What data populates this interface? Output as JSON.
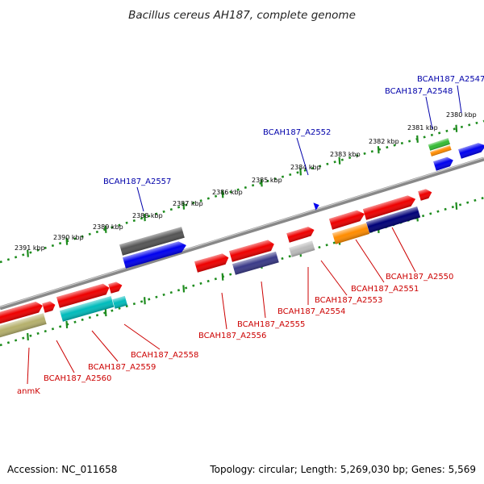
{
  "title": "Bacillus cereus AH187, complete genome",
  "footer": {
    "accession": "Accession: NC_011658",
    "summary": "Topology: circular; Length: 5,269,030 bp; Genes: 5,569"
  },
  "colors": {
    "backbone": "#888888",
    "tick_dots": "#1e8c1e",
    "label_blue": "#0000aa",
    "label_red": "#cc0000"
  },
  "tick_labels": [
    "2380 kbp",
    "2381 kbp",
    "2382 kbp",
    "2383 kbp",
    "2384 kbp",
    "2385 kbp",
    "2386 kbp",
    "2387 kbp",
    "2388 kbp",
    "2389 kbp",
    "2390 kbp",
    "2391 kbp"
  ],
  "gene_labels": {
    "top": [
      "BCAH187_A2547",
      "BCAH187_A2548",
      "BCAH187_A2552",
      "BCAH187_A2557"
    ],
    "bottom": [
      "BCAH187_A2550",
      "BCAH187_A2551",
      "BCAH187_A2553",
      "BCAH187_A2554",
      "BCAH187_A2555",
      "BCAH187_A2556",
      "BCAH187_A2558",
      "BCAH187_A2559",
      "BCAH187_A2560",
      "anmK"
    ]
  }
}
